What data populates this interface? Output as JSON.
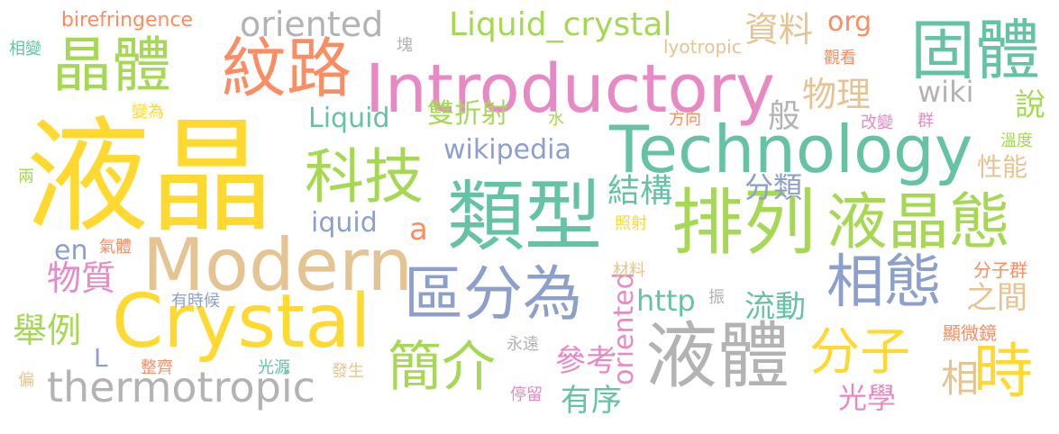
{
  "words": {
    "yejing": "液晶",
    "technology": "Technology",
    "introductory": "Introductory",
    "modern": "Modern",
    "crystal": "Crystal",
    "thermotropic": "thermotropic",
    "leixing": "類型",
    "pailie": "排列",
    "yejingtai": "液晶態",
    "yeti": "液體",
    "gutai": "固體",
    "jingti": "晶體",
    "wenlu": "紋路",
    "keji": "科技",
    "qufenwei": "區分為",
    "xiangtai": "相態",
    "jianjie": "簡介",
    "fenzi": "分子",
    "shi": "時",
    "liquid_crystal": "Liquid_crystal",
    "oriented_top": "oriented",
    "oriented": "oriented",
    "birefringence": "birefringence",
    "wikipedia": "wikipedia",
    "liquid": "Liquid",
    "iquid": "iquid",
    "en": "en",
    "http": "http",
    "wiki": "wiki",
    "org": "org",
    "lyotropic": "lyotropic",
    "a": "a",
    "L": "L",
    "ziliao": "資料",
    "wuli": "物理",
    "shuangzheshe": "雙折射",
    "jiegou": "結構",
    "fenlei": "分類",
    "ban": "般",
    "shuo": "說",
    "xingneng": "性能",
    "wuzhi": "物質",
    "jushi": "舉例",
    "liudong": "流動",
    "zhijian": "之間",
    "cankao": "參考",
    "youxu": "有序",
    "guangxue": "光學",
    "xiang": "相",
    "fenziqun": "分子群",
    "xianweijing": "顯微鏡",
    "wendu": "溫度",
    "qun": "群",
    "gaibian": "改變",
    "fangxiang": "方向",
    "shui": "水",
    "zhaoshe": "照射",
    "cailiao": "材料",
    "zhen": "振",
    "qiti": "氣體",
    "youshihou": "有時候",
    "yongyuan": "永遠",
    "tingliu": "停留",
    "zhengqi": "整齊",
    "guangyuan": "光源",
    "fasheng": "發生",
    "guankan": "觀看",
    "kuai": "塊",
    "xiangbian": "相變",
    "bianwei": "變為",
    "liang": "兩",
    "pian": "偏"
  }
}
